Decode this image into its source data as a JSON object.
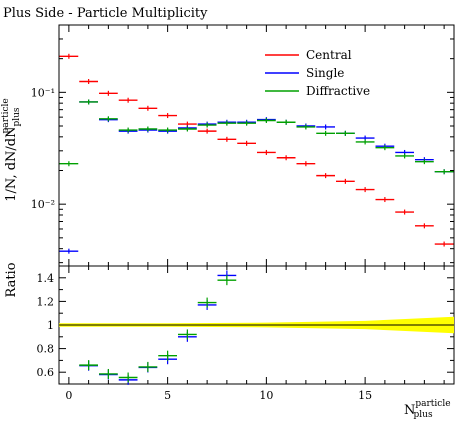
{
  "chart_data": {
    "type": "scatter",
    "title": "Plus Side - Particle Multiplicity",
    "ylabel_main": "1/N, dN/dN",
    "ylabel_main_sup": "particle",
    "ylabel_main_sub": "plus",
    "ylabel_ratio": "Ratio",
    "xlabel": "N",
    "xlabel_sup": "particle",
    "xlabel_sub": "plus",
    "x_ticks": [
      0,
      5,
      10,
      15
    ],
    "x_tick_labels": [
      "0",
      "5",
      "10",
      "15"
    ],
    "xlim": [
      -0.5,
      19.5
    ],
    "main_ylim": [
      0.0028,
      0.4
    ],
    "main_yscale": "log",
    "main_y_ticks": [
      0.1,
      0.01
    ],
    "main_y_tick_labels": [
      "10⁻¹",
      "10⁻²"
    ],
    "ratio_ylim": [
      0.5,
      1.5
    ],
    "ratio_y_ticks": [
      0.6,
      0.8,
      1.0,
      1.2,
      1.4
    ],
    "ratio_y_tick_labels": [
      "0.6",
      "0.8",
      "1",
      "1.2",
      "1.4"
    ],
    "legend_position": "top-right",
    "bin_edges": [
      -0.5,
      0.5,
      1.5,
      2.5,
      3.5,
      4.5,
      5.5,
      6.5,
      7.5,
      8.5,
      9.5,
      10.5,
      11.5,
      12.5,
      13.5,
      14.5,
      15.5,
      16.5,
      17.5,
      18.5,
      19.5
    ],
    "series": [
      {
        "name": "Central",
        "color": "#ff0000",
        "x": [
          0,
          1,
          2,
          3,
          4,
          5,
          6,
          7,
          8,
          9,
          10,
          11,
          12,
          13,
          14,
          15,
          16,
          17,
          18,
          19
        ],
        "values": [
          0.21,
          0.125,
          0.098,
          0.085,
          0.072,
          0.062,
          0.052,
          0.045,
          0.038,
          0.035,
          0.029,
          0.026,
          0.023,
          0.018,
          0.016,
          0.0135,
          0.011,
          0.0085,
          0.0064,
          0.0044
        ]
      },
      {
        "name": "Single",
        "color": "#0000ff",
        "x": [
          0,
          1,
          2,
          3,
          4,
          5,
          6,
          7,
          8,
          9,
          10,
          11,
          12,
          13,
          14,
          15,
          16,
          17,
          18,
          19
        ],
        "values": [
          0.0038,
          0.082,
          0.057,
          0.045,
          0.046,
          0.045,
          0.048,
          0.052,
          0.054,
          0.054,
          0.057,
          0.054,
          0.05,
          0.049,
          0.043,
          0.039,
          0.033,
          0.029,
          0.025,
          0.0195
        ]
      },
      {
        "name": "Diffractive",
        "color": "#00a000",
        "x": [
          0,
          1,
          2,
          3,
          4,
          5,
          6,
          7,
          8,
          9,
          10,
          11,
          12,
          13,
          14,
          15,
          16,
          17,
          18,
          19
        ],
        "values": [
          0.023,
          0.082,
          0.058,
          0.046,
          0.047,
          0.046,
          0.047,
          0.051,
          0.053,
          0.053,
          0.056,
          0.054,
          0.049,
          0.043,
          0.043,
          0.036,
          0.032,
          0.027,
          0.024,
          0.0195
        ]
      }
    ],
    "ratio_series": [
      {
        "name": "Single",
        "color": "#0000ff",
        "x": [
          1,
          2,
          3,
          4,
          5,
          6,
          7,
          8
        ],
        "values": [
          0.655,
          0.58,
          0.535,
          0.64,
          0.71,
          0.9,
          1.17,
          1.42
        ]
      },
      {
        "name": "Diffractive",
        "color": "#00a000",
        "x": [
          1,
          2,
          3,
          4,
          5,
          6,
          7,
          8
        ],
        "values": [
          0.66,
          0.585,
          0.555,
          0.645,
          0.74,
          0.92,
          1.19,
          1.38
        ]
      }
    ],
    "ratio_band": {
      "color": "#ffff00",
      "x": [
        -0.5,
        5,
        10,
        15,
        19.5
      ],
      "half_width": [
        0.015,
        0.015,
        0.02,
        0.035,
        0.07
      ]
    }
  }
}
